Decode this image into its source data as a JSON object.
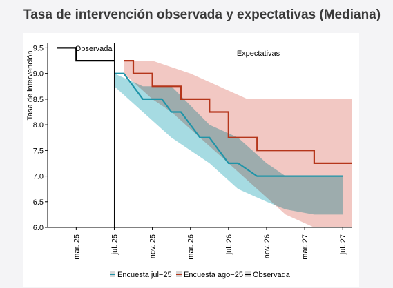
{
  "title": "Tasa de intervención observada y expectativas (Mediana)",
  "chart_data": {
    "type": "line",
    "ylabel": "Tasa de intervención",
    "ylim": [
      6.0,
      9.6
    ],
    "yticks": [
      6.0,
      6.5,
      7.0,
      7.5,
      8.0,
      8.5,
      9.0,
      9.5
    ],
    "ytick_labels": [
      "6.0",
      "6.5",
      "7.0",
      "7.5",
      "8.0",
      "8.5",
      "9.0",
      "9.5"
    ],
    "x_unit": "month",
    "xlim": [
      "2024-12",
      "2027-08"
    ],
    "xticks": [
      "2025-03",
      "2025-07",
      "2025-11",
      "2026-03",
      "2026-07",
      "2026-11",
      "2027-03",
      "2027-07"
    ],
    "xtick_labels": [
      "mar. 25",
      "jul. 25",
      "nov. 25",
      "mar. 26",
      "jul. 26",
      "nov. 26",
      "mar. 27",
      "jul. 27"
    ],
    "divider": "2025-07",
    "annotations": {
      "observed": "Observada",
      "expected": "Expectativas"
    },
    "grid": false,
    "legend_position": "bottom",
    "legend": [
      {
        "label": "Encuesta jul−25",
        "color": "#1f94a8"
      },
      {
        "label": "Encuesta ago−25",
        "color": "#b5361b"
      },
      {
        "label": "Observada",
        "color": "#000000"
      }
    ],
    "series": [
      {
        "name": "Observada",
        "color": "#000000",
        "points": [
          [
            "2025-01",
            9.5
          ],
          [
            "2025-03",
            9.5
          ],
          [
            "2025-03",
            9.25
          ],
          [
            "2025-07",
            9.25
          ]
        ]
      },
      {
        "name": "Encuesta jul−25",
        "color": "#1f94a8",
        "band_color": "#a6dbe2",
        "points": [
          [
            "2025-07",
            9.0
          ],
          [
            "2025-08",
            9.0
          ],
          [
            "2025-10",
            8.5
          ],
          [
            "2025-12",
            8.5
          ],
          [
            "2026-01",
            8.25
          ],
          [
            "2026-02",
            8.25
          ],
          [
            "2026-04",
            7.75
          ],
          [
            "2026-05",
            7.75
          ],
          [
            "2026-07",
            7.25
          ],
          [
            "2026-08",
            7.25
          ],
          [
            "2026-10",
            7.0
          ],
          [
            "2027-07",
            7.0
          ]
        ],
        "band_upper": [
          [
            "2025-07",
            9.0
          ],
          [
            "2025-10",
            8.75
          ],
          [
            "2026-01",
            8.75
          ],
          [
            "2026-05",
            8.0
          ],
          [
            "2026-08",
            7.75
          ],
          [
            "2026-11",
            7.25
          ],
          [
            "2027-01",
            7.0
          ],
          [
            "2027-07",
            7.0
          ]
        ],
        "band_lower": [
          [
            "2025-07",
            8.75
          ],
          [
            "2025-10",
            8.25
          ],
          [
            "2026-01",
            7.75
          ],
          [
            "2026-05",
            7.25
          ],
          [
            "2026-08",
            6.75
          ],
          [
            "2026-11",
            6.5
          ],
          [
            "2027-01",
            6.35
          ],
          [
            "2027-04",
            6.25
          ],
          [
            "2027-07",
            6.25
          ]
        ]
      },
      {
        "name": "Encuesta ago−25",
        "color": "#b5361b",
        "band_color": "#f2c8c3",
        "points": [
          [
            "2025-08",
            9.25
          ],
          [
            "2025-09",
            9.25
          ],
          [
            "2025-09",
            9.0
          ],
          [
            "2025-11",
            9.0
          ],
          [
            "2025-11",
            8.75
          ],
          [
            "2026-02",
            8.75
          ],
          [
            "2026-02",
            8.5
          ],
          [
            "2026-05",
            8.5
          ],
          [
            "2026-05",
            8.25
          ],
          [
            "2026-07",
            8.25
          ],
          [
            "2026-07",
            7.75
          ],
          [
            "2026-10",
            7.75
          ],
          [
            "2026-10",
            7.5
          ],
          [
            "2027-04",
            7.5
          ],
          [
            "2027-04",
            7.25
          ],
          [
            "2027-08",
            7.25
          ]
        ],
        "band_upper": [
          [
            "2025-08",
            9.25
          ],
          [
            "2025-11",
            9.25
          ],
          [
            "2026-03",
            9.0
          ],
          [
            "2026-06",
            8.75
          ],
          [
            "2026-09",
            8.5
          ],
          [
            "2027-08",
            8.5
          ]
        ],
        "band_lower": [
          [
            "2025-08",
            9.0
          ],
          [
            "2025-11",
            8.5
          ],
          [
            "2026-01",
            8.25
          ],
          [
            "2026-04",
            7.75
          ],
          [
            "2026-07",
            7.25
          ],
          [
            "2026-10",
            6.75
          ],
          [
            "2027-01",
            6.25
          ],
          [
            "2027-04",
            6.0
          ],
          [
            "2027-08",
            6.0
          ]
        ]
      }
    ]
  }
}
